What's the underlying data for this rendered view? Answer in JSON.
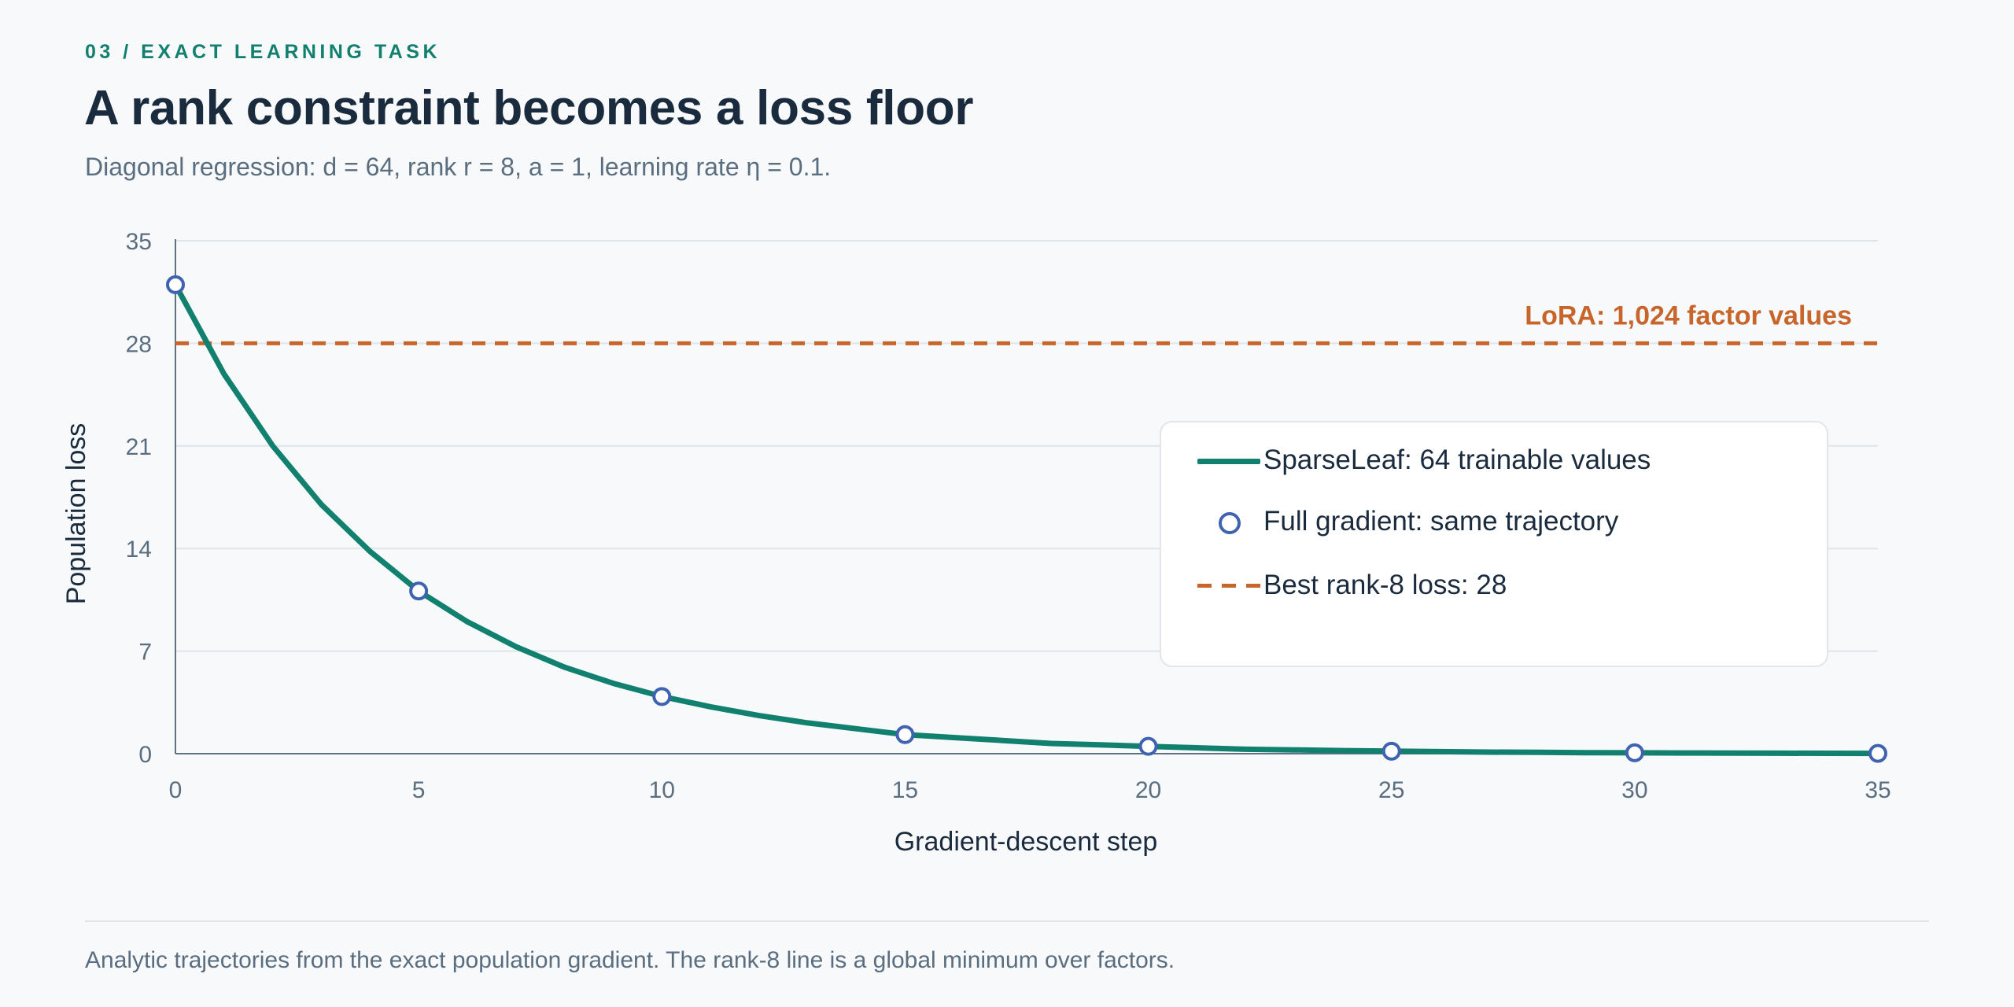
{
  "header": {
    "eyebrow": "03 / EXACT LEARNING TASK",
    "title": "A rank constraint becomes a loss floor",
    "subtitle": "Diagonal regression: d = 64, rank r = 8, a = 1, learning rate η = 0.1."
  },
  "footer": {
    "note": "Analytic trajectories from the exact population gradient. The rank-8 line is a global minimum over factors."
  },
  "colors": {
    "sparseleaf": "#11806e",
    "full_gradient": "#3f63b0",
    "lora": "#c8652a",
    "axis_text": "#5a6e80",
    "grid": "#dfe5ea"
  },
  "legend": {
    "items": [
      {
        "icon": "solid-line",
        "label": "SparseLeaf: 64 trainable values"
      },
      {
        "icon": "open-circle",
        "label": "Full gradient: same trajectory"
      },
      {
        "icon": "dashed-line",
        "label": "Best rank-8 loss: 28"
      }
    ]
  },
  "chart_data": {
    "type": "line",
    "title": "",
    "xlabel": "Gradient-descent step",
    "ylabel": "Population loss",
    "xlim": [
      0,
      35
    ],
    "ylim": [
      0,
      35
    ],
    "xticks": [
      0,
      5,
      10,
      15,
      20,
      25,
      30,
      35
    ],
    "yticks": [
      0,
      7,
      14,
      21,
      28,
      35
    ],
    "grid": true,
    "legend_position": "right",
    "series": [
      {
        "name": "SparseLeaf: 64 trainable values",
        "style": "solid",
        "x": [
          0,
          1,
          2,
          3,
          4,
          5,
          6,
          7,
          8,
          9,
          10,
          11,
          12,
          13,
          14,
          15,
          16,
          17,
          18,
          19,
          20,
          21,
          22,
          23,
          24,
          25,
          26,
          27,
          28,
          29,
          30,
          31,
          32,
          33,
          34,
          35
        ],
        "y": [
          32,
          25.9,
          21.0,
          17.0,
          13.8,
          11.1,
          9.0,
          7.3,
          5.9,
          4.8,
          3.9,
          3.2,
          2.6,
          2.1,
          1.7,
          1.3,
          1.1,
          0.9,
          0.7,
          0.6,
          0.5,
          0.4,
          0.3,
          0.26,
          0.21,
          0.17,
          0.14,
          0.11,
          0.09,
          0.07,
          0.06,
          0.05,
          0.04,
          0.03,
          0.025,
          0.02
        ]
      },
      {
        "name": "Full gradient: same trajectory",
        "style": "markers",
        "x": [
          0,
          5,
          10,
          15,
          20,
          25,
          30,
          35
        ],
        "y": [
          32,
          11.1,
          3.9,
          1.3,
          0.5,
          0.17,
          0.06,
          0.02
        ]
      },
      {
        "name": "Best rank-8 loss: 28",
        "style": "dashed",
        "y_constant": 28
      }
    ],
    "annotations": [
      {
        "text": "LoRA: 1,024 factor values",
        "y": 28
      }
    ]
  }
}
